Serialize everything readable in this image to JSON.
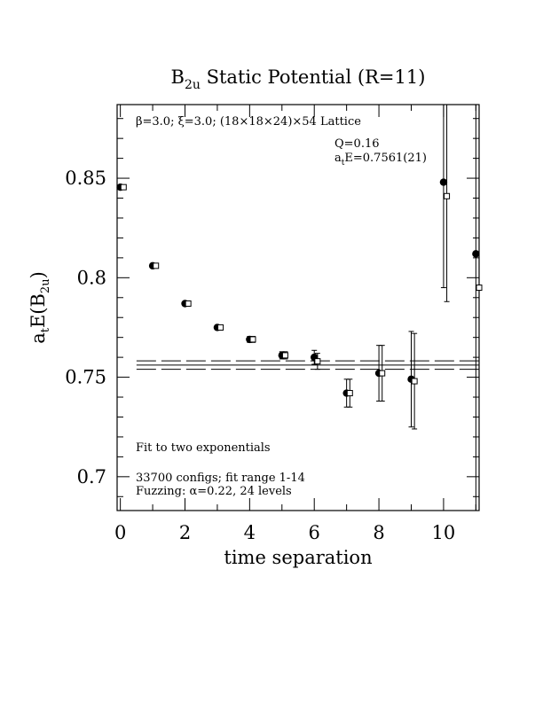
{
  "chart_data": {
    "type": "scatter",
    "title": "B2u Static Potential (R=11)",
    "title_main": "B",
    "title_sub": "2u",
    "title_rest": " Static Potential (R=11)",
    "xlabel": "time separation",
    "ylabel": "a_tE(B_2u)",
    "ylabel_main_a": "a",
    "ylabel_sub_a": "t",
    "ylabel_main_b": "E(B",
    "ylabel_sub_b": "2u",
    "ylabel_main_c": ")",
    "xlim": [
      -0.1,
      11.1
    ],
    "ylim": [
      0.683,
      0.887
    ],
    "xticks": [
      0,
      2,
      4,
      6,
      8,
      10
    ],
    "xtick_labels": [
      "0",
      "2",
      "4",
      "6",
      "8",
      "10"
    ],
    "yticks": [
      0.7,
      0.75,
      0.8,
      0.85
    ],
    "ytick_labels": [
      "0.7",
      "0.75",
      "0.8",
      "0.85"
    ],
    "grid": false,
    "annotations": {
      "lattice": "β=3.0; ξ=3.0; (18×18×24)×54 Lattice",
      "q_value": "Q=0.16",
      "energy_main": "a",
      "energy_sub": "t",
      "energy_rest": "E=0.7561(21)",
      "fit_desc": "Fit to two exponentials",
      "configs": "33700 configs; fit range 1-14",
      "fuzzing": "Fuzzing: α=0.22, 24 levels"
    },
    "fit": {
      "center": 0.7561,
      "error": 0.0021,
      "x_range": [
        0.5,
        11.1
      ]
    },
    "series": [
      {
        "marker": "filled-circle",
        "x": [
          0,
          1,
          2,
          3,
          4,
          5,
          6,
          7,
          8,
          9,
          10,
          11
        ],
        "y": [
          0.8455,
          0.806,
          0.787,
          0.775,
          0.769,
          0.761,
          0.76,
          0.742,
          0.752,
          0.749,
          0.848,
          0.812
        ],
        "yerr": [
          0.0007,
          0.0009,
          0.001,
          0.0012,
          0.0015,
          0.0018,
          0.0035,
          0.007,
          0.014,
          0.024,
          0.053,
          0.15
        ]
      },
      {
        "marker": "open-square",
        "x": [
          0.1,
          1.1,
          2.1,
          3.1,
          4.1,
          5.1,
          6.1,
          7.1,
          8.1,
          9.1,
          10.1,
          11.1
        ],
        "y": [
          0.8455,
          0.806,
          0.787,
          0.775,
          0.769,
          0.761,
          0.758,
          0.742,
          0.752,
          0.748,
          0.841,
          0.795
        ],
        "yerr": [
          0.0007,
          0.0009,
          0.001,
          0.0012,
          0.0015,
          0.0018,
          0.004,
          0.007,
          0.014,
          0.024,
          0.053,
          0.12
        ]
      }
    ]
  }
}
